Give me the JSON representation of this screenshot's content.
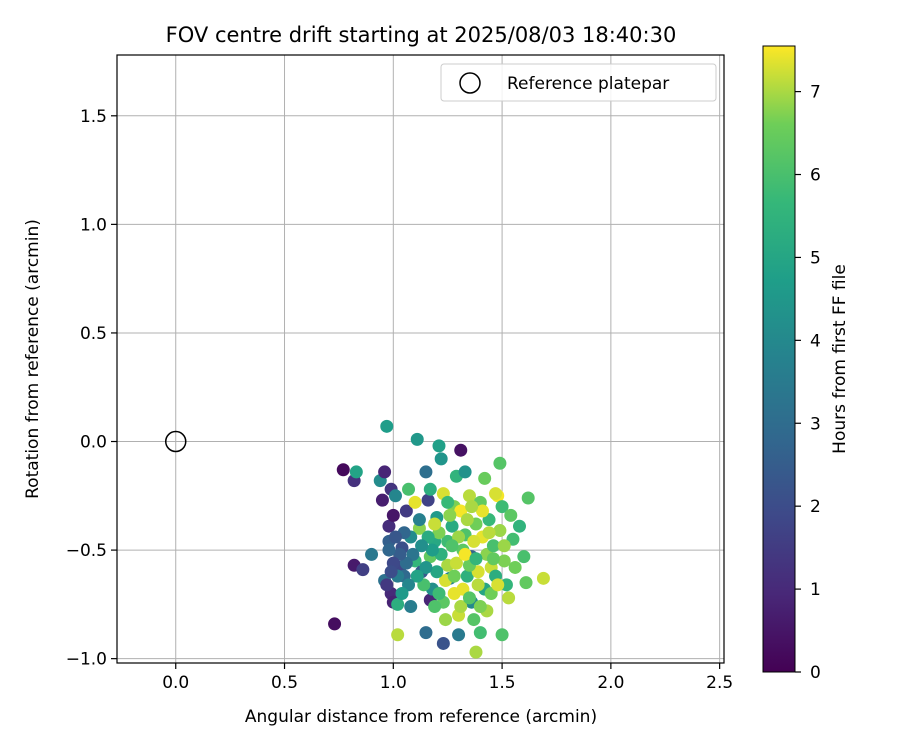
{
  "chart_data": {
    "type": "scatter",
    "title": "FOV centre drift starting at 2025/08/03 18:40:30",
    "xlabel": "Angular distance from reference (arcmin)",
    "ylabel": "Rotation from reference (arcmin)",
    "xlim": [
      -0.27,
      2.52
    ],
    "ylim": [
      -1.02,
      1.78
    ],
    "x_ticks": [
      0.0,
      0.5,
      1.0,
      1.5,
      2.0,
      2.5
    ],
    "y_ticks": [
      -1.0,
      -0.5,
      0.0,
      0.5,
      1.0,
      1.5
    ],
    "x_tick_labels": [
      "0.0",
      "0.5",
      "1.0",
      "1.5",
      "2.0",
      "2.5"
    ],
    "y_tick_labels": [
      "−1.0",
      "−0.5",
      "0.0",
      "0.5",
      "1.0",
      "1.5"
    ],
    "grid": true,
    "legend": {
      "position": "top-right",
      "entries": [
        "Reference platepar"
      ]
    },
    "reference_point": {
      "x": 0.0,
      "y": 0.0
    },
    "colorbar": {
      "label": "Hours from first FF file",
      "range": [
        0,
        7.55
      ],
      "ticks": [
        0,
        1,
        2,
        3,
        4,
        5,
        6,
        7
      ],
      "tick_labels": [
        "0",
        "1",
        "2",
        "3",
        "4",
        "5",
        "6",
        "7"
      ],
      "colormap": "viridis"
    },
    "series": [
      {
        "values": [
          {
            "x": 0.73,
            "y": -0.84,
            "c": 0.3
          },
          {
            "x": 0.77,
            "y": -0.13,
            "c": 0.2
          },
          {
            "x": 0.82,
            "y": -0.18,
            "c": 1.2
          },
          {
            "x": 0.83,
            "y": -0.14,
            "c": 4.9
          },
          {
            "x": 0.82,
            "y": -0.57,
            "c": 0.6
          },
          {
            "x": 0.86,
            "y": -0.59,
            "c": 1.6
          },
          {
            "x": 0.9,
            "y": -0.52,
            "c": 3.4
          },
          {
            "x": 0.94,
            "y": -0.18,
            "c": 4.1
          },
          {
            "x": 0.95,
            "y": -0.27,
            "c": 0.7
          },
          {
            "x": 0.96,
            "y": -0.14,
            "c": 0.9
          },
          {
            "x": 0.97,
            "y": 0.07,
            "c": 4.7
          },
          {
            "x": 0.98,
            "y": -0.39,
            "c": 1.1
          },
          {
            "x": 0.98,
            "y": -0.46,
            "c": 2.6
          },
          {
            "x": 0.99,
            "y": -0.22,
            "c": 1.3
          },
          {
            "x": 1.0,
            "y": -0.34,
            "c": 0.5
          },
          {
            "x": 1.01,
            "y": -0.25,
            "c": 3.9
          },
          {
            "x": 0.96,
            "y": -0.64,
            "c": 3.2
          },
          {
            "x": 0.99,
            "y": -0.7,
            "c": 1.0
          },
          {
            "x": 1.0,
            "y": -0.74,
            "c": 0.8
          },
          {
            "x": 1.02,
            "y": -0.75,
            "c": 5.3
          },
          {
            "x": 1.02,
            "y": -0.89,
            "c": 7.1
          },
          {
            "x": 1.04,
            "y": -0.49,
            "c": 2.1
          },
          {
            "x": 1.03,
            "y": -0.58,
            "c": 1.8
          },
          {
            "x": 1.05,
            "y": -0.62,
            "c": 2.9
          },
          {
            "x": 1.06,
            "y": -0.32,
            "c": 1.5
          },
          {
            "x": 1.07,
            "y": -0.22,
            "c": 6.0
          },
          {
            "x": 1.08,
            "y": -0.76,
            "c": 3.6
          },
          {
            "x": 1.1,
            "y": -0.55,
            "c": 5.6
          },
          {
            "x": 1.11,
            "y": 0.01,
            "c": 4.5
          },
          {
            "x": 1.12,
            "y": -0.4,
            "c": 6.8
          },
          {
            "x": 1.13,
            "y": -0.6,
            "c": 2.4
          },
          {
            "x": 1.15,
            "y": -0.88,
            "c": 3.0
          },
          {
            "x": 1.15,
            "y": -0.14,
            "c": 3.1
          },
          {
            "x": 1.16,
            "y": -0.27,
            "c": 1.7
          },
          {
            "x": 1.17,
            "y": -0.53,
            "c": 6.4
          },
          {
            "x": 1.17,
            "y": -0.73,
            "c": 0.9
          },
          {
            "x": 1.18,
            "y": -0.68,
            "c": 4.2
          },
          {
            "x": 1.19,
            "y": -0.46,
            "c": 5.1
          },
          {
            "x": 1.2,
            "y": -0.35,
            "c": 4.6
          },
          {
            "x": 1.21,
            "y": -0.02,
            "c": 4.8
          },
          {
            "x": 1.22,
            "y": -0.08,
            "c": 4.4
          },
          {
            "x": 1.23,
            "y": -0.93,
            "c": 2.2
          },
          {
            "x": 1.23,
            "y": -0.24,
            "c": 7.3
          },
          {
            "x": 1.24,
            "y": -0.82,
            "c": 6.9
          },
          {
            "x": 1.25,
            "y": -0.57,
            "c": 7.0
          },
          {
            "x": 1.25,
            "y": -0.46,
            "c": 5.8
          },
          {
            "x": 1.26,
            "y": -0.63,
            "c": 3.8
          },
          {
            "x": 1.27,
            "y": -0.39,
            "c": 5.2
          },
          {
            "x": 1.28,
            "y": -0.3,
            "c": 6.7
          },
          {
            "x": 1.28,
            "y": -0.7,
            "c": 7.4
          },
          {
            "x": 1.29,
            "y": -0.16,
            "c": 5.5
          },
          {
            "x": 1.3,
            "y": -0.89,
            "c": 3.5
          },
          {
            "x": 1.3,
            "y": -0.8,
            "c": 7.2
          },
          {
            "x": 1.31,
            "y": -0.04,
            "c": 0.4
          },
          {
            "x": 1.31,
            "y": -0.32,
            "c": 7.5
          },
          {
            "x": 1.32,
            "y": -0.5,
            "c": 6.3
          },
          {
            "x": 1.33,
            "y": -0.14,
            "c": 4.3
          },
          {
            "x": 1.33,
            "y": -0.43,
            "c": 6.1
          },
          {
            "x": 1.34,
            "y": -0.62,
            "c": 5.4
          },
          {
            "x": 1.35,
            "y": -0.25,
            "c": 7.1
          },
          {
            "x": 1.36,
            "y": -0.53,
            "c": 2.7
          },
          {
            "x": 1.36,
            "y": -0.74,
            "c": 4.0
          },
          {
            "x": 1.37,
            "y": -0.82,
            "c": 6.2
          },
          {
            "x": 1.38,
            "y": -0.97,
            "c": 7.0
          },
          {
            "x": 1.38,
            "y": -0.38,
            "c": 6.6
          },
          {
            "x": 1.39,
            "y": -0.6,
            "c": 7.3
          },
          {
            "x": 1.4,
            "y": -0.88,
            "c": 5.9
          },
          {
            "x": 1.4,
            "y": -0.28,
            "c": 6.4
          },
          {
            "x": 1.41,
            "y": -0.44,
            "c": 7.4
          },
          {
            "x": 1.42,
            "y": -0.17,
            "c": 6.5
          },
          {
            "x": 1.42,
            "y": -0.68,
            "c": 5.0
          },
          {
            "x": 1.43,
            "y": -0.52,
            "c": 6.8
          },
          {
            "x": 1.44,
            "y": -0.36,
            "c": 5.7
          },
          {
            "x": 1.45,
            "y": -0.58,
            "c": 7.2
          },
          {
            "x": 1.46,
            "y": -0.48,
            "c": 6.0
          },
          {
            "x": 1.47,
            "y": -0.62,
            "c": 5.3
          },
          {
            "x": 1.48,
            "y": -0.25,
            "c": 7.5
          },
          {
            "x": 1.49,
            "y": -0.41,
            "c": 6.9
          },
          {
            "x": 1.49,
            "y": -0.1,
            "c": 6.2
          },
          {
            "x": 1.5,
            "y": -0.89,
            "c": 6.1
          },
          {
            "x": 1.5,
            "y": -0.3,
            "c": 5.8
          },
          {
            "x": 1.51,
            "y": -0.55,
            "c": 6.7
          },
          {
            "x": 1.52,
            "y": -0.66,
            "c": 5.6
          },
          {
            "x": 1.53,
            "y": -0.72,
            "c": 7.1
          },
          {
            "x": 1.54,
            "y": -0.34,
            "c": 6.3
          },
          {
            "x": 1.55,
            "y": -0.45,
            "c": 5.9
          },
          {
            "x": 1.56,
            "y": -0.58,
            "c": 6.6
          },
          {
            "x": 1.58,
            "y": -0.39,
            "c": 5.5
          },
          {
            "x": 1.6,
            "y": -0.53,
            "c": 6.0
          },
          {
            "x": 1.61,
            "y": -0.65,
            "c": 6.4
          },
          {
            "x": 1.62,
            "y": -0.26,
            "c": 6.2
          },
          {
            "x": 1.69,
            "y": -0.63,
            "c": 7.2
          },
          {
            "x": 1.47,
            "y": -0.24,
            "c": 7.3
          },
          {
            "x": 1.45,
            "y": -0.7,
            "c": 6.6
          },
          {
            "x": 1.43,
            "y": -0.78,
            "c": 7.0
          },
          {
            "x": 1.41,
            "y": -0.32,
            "c": 7.4
          },
          {
            "x": 1.39,
            "y": -0.66,
            "c": 7.1
          },
          {
            "x": 1.37,
            "y": -0.46,
            "c": 7.3
          },
          {
            "x": 1.35,
            "y": -0.57,
            "c": 6.5
          },
          {
            "x": 1.34,
            "y": -0.36,
            "c": 7.0
          },
          {
            "x": 1.32,
            "y": -0.68,
            "c": 7.4
          },
          {
            "x": 1.3,
            "y": -0.44,
            "c": 6.9
          },
          {
            "x": 1.29,
            "y": -0.56,
            "c": 7.2
          },
          {
            "x": 1.27,
            "y": -0.48,
            "c": 6.1
          },
          {
            "x": 1.26,
            "y": -0.34,
            "c": 6.8
          },
          {
            "x": 1.24,
            "y": -0.64,
            "c": 7.3
          },
          {
            "x": 1.22,
            "y": -0.52,
            "c": 5.4
          },
          {
            "x": 1.21,
            "y": -0.42,
            "c": 6.7
          },
          {
            "x": 1.2,
            "y": -0.6,
            "c": 5.0
          },
          {
            "x": 1.19,
            "y": -0.38,
            "c": 7.2
          },
          {
            "x": 1.18,
            "y": -0.5,
            "c": 4.7
          },
          {
            "x": 1.16,
            "y": -0.44,
            "c": 5.2
          },
          {
            "x": 1.15,
            "y": -0.58,
            "c": 4.4
          },
          {
            "x": 1.14,
            "y": -0.66,
            "c": 6.0
          },
          {
            "x": 1.13,
            "y": -0.48,
            "c": 4.2
          },
          {
            "x": 1.12,
            "y": -0.36,
            "c": 3.7
          },
          {
            "x": 1.11,
            "y": -0.62,
            "c": 4.9
          },
          {
            "x": 1.1,
            "y": -0.28,
            "c": 7.4
          },
          {
            "x": 1.09,
            "y": -0.52,
            "c": 3.3
          },
          {
            "x": 1.08,
            "y": -0.44,
            "c": 4.1
          },
          {
            "x": 1.07,
            "y": -0.66,
            "c": 3.9
          },
          {
            "x": 1.06,
            "y": -0.56,
            "c": 3.0
          },
          {
            "x": 1.05,
            "y": -0.42,
            "c": 2.8
          },
          {
            "x": 1.04,
            "y": -0.7,
            "c": 4.6
          },
          {
            "x": 1.03,
            "y": -0.52,
            "c": 2.5
          },
          {
            "x": 1.02,
            "y": -0.62,
            "c": 3.6
          },
          {
            "x": 1.01,
            "y": -0.44,
            "c": 2.3
          },
          {
            "x": 1.0,
            "y": -0.56,
            "c": 1.9
          },
          {
            "x": 0.99,
            "y": -0.6,
            "c": 2.0
          },
          {
            "x": 0.98,
            "y": -0.5,
            "c": 2.8
          },
          {
            "x": 0.97,
            "y": -0.66,
            "c": 1.4
          },
          {
            "x": 1.23,
            "y": -0.74,
            "c": 6.3
          },
          {
            "x": 1.25,
            "y": -0.28,
            "c": 5.7
          },
          {
            "x": 1.28,
            "y": -0.62,
            "c": 6.6
          },
          {
            "x": 1.33,
            "y": -0.52,
            "c": 7.5
          },
          {
            "x": 1.36,
            "y": -0.3,
            "c": 7.0
          },
          {
            "x": 1.38,
            "y": -0.54,
            "c": 5.6
          },
          {
            "x": 1.44,
            "y": -0.42,
            "c": 7.1
          },
          {
            "x": 1.46,
            "y": -0.54,
            "c": 6.4
          },
          {
            "x": 1.48,
            "y": -0.66,
            "c": 7.3
          },
          {
            "x": 1.51,
            "y": -0.48,
            "c": 6.9
          },
          {
            "x": 1.17,
            "y": -0.22,
            "c": 5.3
          },
          {
            "x": 1.19,
            "y": -0.76,
            "c": 6.1
          },
          {
            "x": 1.21,
            "y": -0.7,
            "c": 5.8
          },
          {
            "x": 1.31,
            "y": -0.76,
            "c": 7.0
          },
          {
            "x": 1.35,
            "y": -0.72,
            "c": 6.2
          },
          {
            "x": 1.4,
            "y": -0.76,
            "c": 6.7
          }
        ]
      }
    ]
  }
}
